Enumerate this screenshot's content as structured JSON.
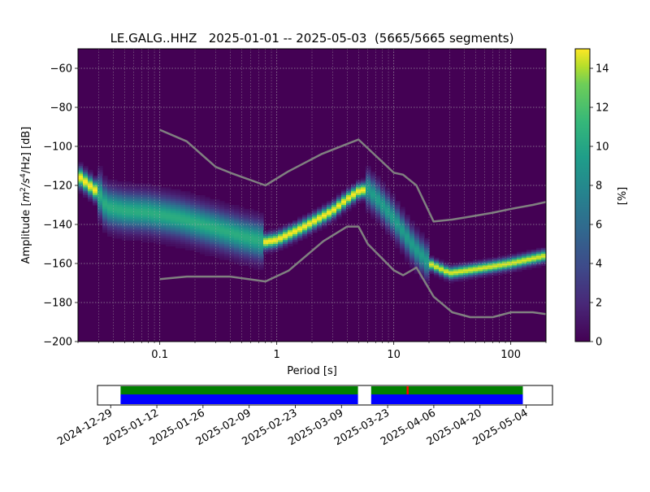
{
  "chart_data": [
    {
      "type": "heatmap",
      "title": "LE.GALG..HHZ   2025-01-01 -- 2025-05-03  (5665/5665 segments)",
      "xlabel": "Period [s]",
      "ylabel": "Amplitude [m²/s⁴/Hz] [dB]",
      "ylabel_parts": {
        "prefix": "Amplitude [",
        "m": "m",
        "m_exp": "2",
        "slash": "/s",
        "s_exp": "4",
        "suffix": "/Hz] [dB]"
      },
      "xscale": "log",
      "xlim": [
        0.02,
        200
      ],
      "ylim": [
        -200,
        -50
      ],
      "xticks": [
        0.1,
        1,
        10,
        100
      ],
      "xtick_labels": [
        "0.1",
        "1",
        "10",
        "100"
      ],
      "yticks": [
        -60,
        -80,
        -100,
        -120,
        -140,
        -160,
        -180,
        -200
      ],
      "ytick_labels": [
        "−60",
        "−80",
        "−100",
        "−120",
        "−140",
        "−160",
        "−180",
        "−200"
      ],
      "grid": true,
      "colormap": "viridis",
      "colorbar": {
        "label": "[%]",
        "range": [
          0,
          15
        ],
        "ticks": [
          0,
          2,
          4,
          6,
          8,
          10,
          12,
          14
        ],
        "tick_labels": [
          "0",
          "2",
          "4",
          "6",
          "8",
          "10",
          "12",
          "14"
        ]
      },
      "density_mode": [
        [
          0.02,
          -115
        ],
        [
          0.03,
          -124
        ],
        [
          0.035,
          -131
        ],
        [
          0.05,
          -133
        ],
        [
          0.08,
          -134
        ],
        [
          0.15,
          -137
        ],
        [
          0.3,
          -142
        ],
        [
          0.5,
          -146
        ],
        [
          0.8,
          -149
        ],
        [
          1.0,
          -148
        ],
        [
          1.5,
          -143
        ],
        [
          2.0,
          -139
        ],
        [
          3.0,
          -133
        ],
        [
          4.0,
          -127
        ],
        [
          5.0,
          -123
        ],
        [
          6.0,
          -122
        ],
        [
          7.0,
          -126
        ],
        [
          10.0,
          -137
        ],
        [
          15.0,
          -152
        ],
        [
          20.0,
          -160
        ],
        [
          30.0,
          -165
        ],
        [
          50.0,
          -163
        ],
        [
          100.0,
          -160
        ],
        [
          200.0,
          -156
        ]
      ],
      "series": [
        {
          "name": "high-noise-model",
          "x": [
            0.1,
            0.17,
            0.3,
            0.4,
            0.8,
            1.24,
            2.4,
            4.3,
            5.0,
            6.0,
            10.0,
            12.0,
            15.6,
            21.9,
            31.6,
            45.0,
            70.0,
            101.0,
            154.0,
            200.0
          ],
          "y": [
            -91.5,
            -97.4,
            -110.5,
            -113.5,
            -120.0,
            -113.0,
            -104.0,
            -98.0,
            -96.5,
            -101.0,
            -113.5,
            -114.5,
            -120.0,
            -138.5,
            -137.5,
            -136.0,
            -134.0,
            -132.0,
            -130.0,
            -128.5
          ]
        },
        {
          "name": "low-noise-model",
          "x": [
            0.1,
            0.17,
            0.4,
            0.8,
            1.26,
            2.5,
            4.0,
            5.0,
            6.0,
            10.0,
            12.0,
            15.6,
            21.9,
            31.6,
            45.0,
            70.0,
            101.0,
            154.0,
            200.0
          ],
          "y": [
            -168.0,
            -166.7,
            -166.7,
            -169.2,
            -163.7,
            -148.6,
            -141.1,
            -141.1,
            -150.0,
            -163.5,
            -166.0,
            -162.1,
            -177.0,
            -185.0,
            -187.5,
            -187.5,
            -185.0,
            -185.0,
            -185.9
          ]
        }
      ]
    },
    {
      "type": "timeline",
      "xtick_labels": [
        "2024-12-29",
        "2025-01-12",
        "2025-01-26",
        "2025-02-09",
        "2025-02-23",
        "2025-03-09",
        "2025-03-23",
        "2025-04-06",
        "2025-04-20",
        "2025-05-04"
      ],
      "xticks": [
        "2024-12-29",
        "2025-01-12",
        "2025-01-26",
        "2025-02-09",
        "2025-02-23",
        "2025-03-09",
        "2025-03-23",
        "2025-04-06",
        "2025-04-20",
        "2025-05-04"
      ],
      "xlim": [
        "2024-12-25",
        "2025-05-12"
      ],
      "data_spans": [
        [
          "2025-01-01",
          "2025-03-14"
        ],
        [
          "2025-03-18",
          "2025-05-03"
        ]
      ],
      "colors": {
        "data": "#0000ff",
        "used": "#008000",
        "gap": "#ff0000"
      },
      "gap_marks": [
        "2025-03-29"
      ]
    }
  ]
}
